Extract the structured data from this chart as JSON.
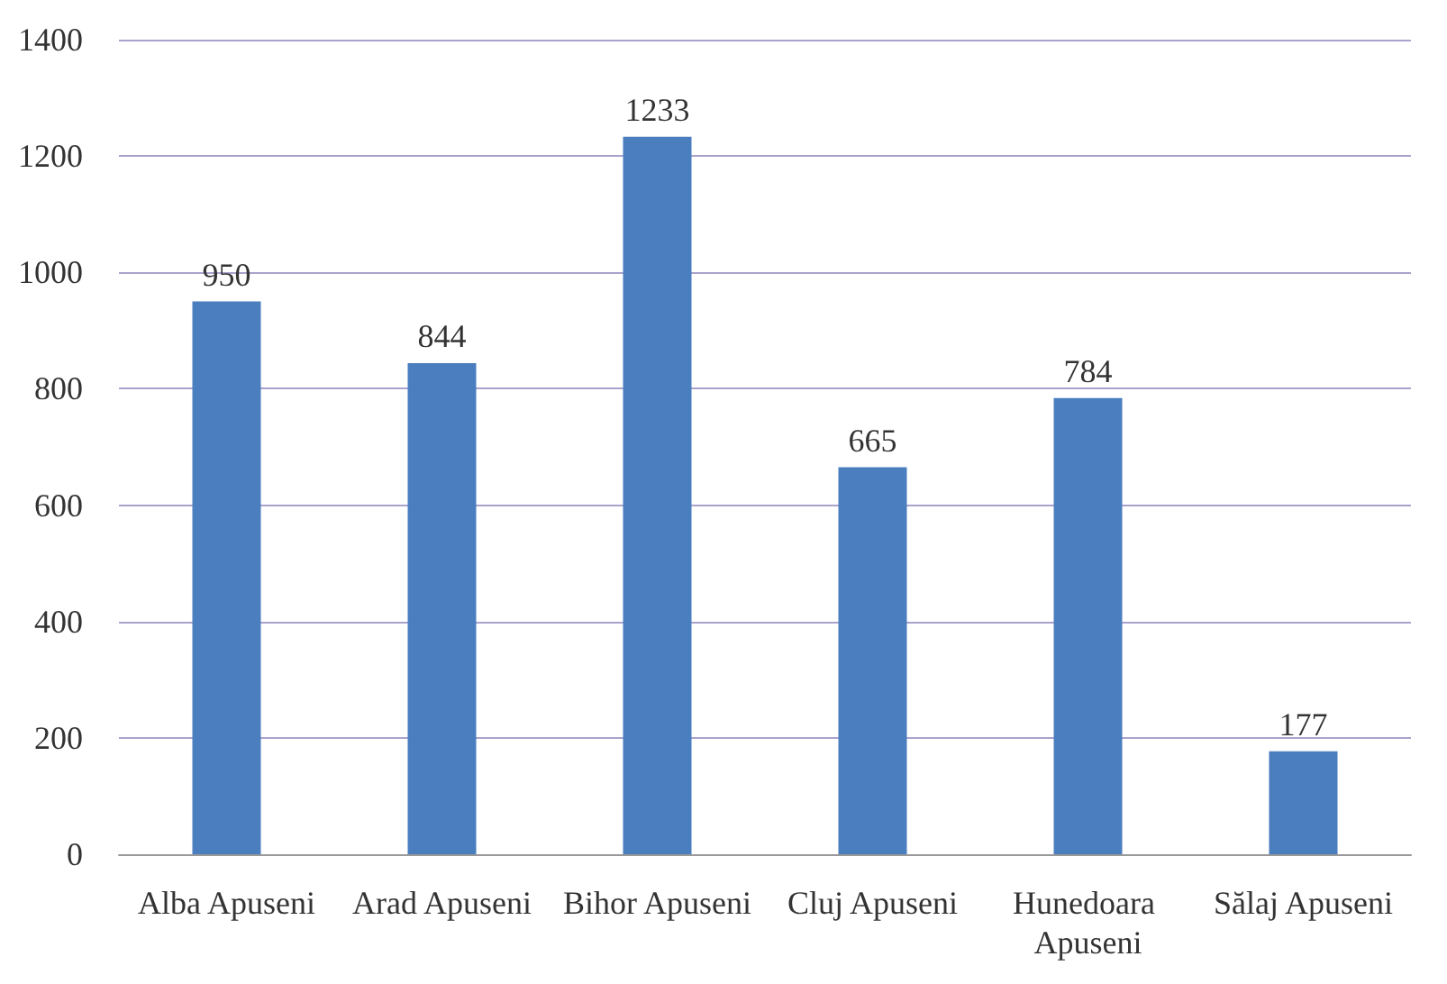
{
  "chart_data": {
    "type": "bar",
    "categories": [
      "Alba Apuseni",
      "Arad Apuseni",
      "Bihor Apuseni",
      "Cluj Apuseni",
      "Hunedoara Apuseni",
      "Sălaj Apuseni"
    ],
    "values": [
      950,
      844,
      1233,
      665,
      784,
      177
    ],
    "color": "#4a7ebf",
    "ylim": [
      0,
      1400
    ],
    "yticks": [
      0,
      200,
      400,
      600,
      800,
      1000,
      1200,
      1400
    ],
    "grid": "y",
    "data_labels": true
  }
}
